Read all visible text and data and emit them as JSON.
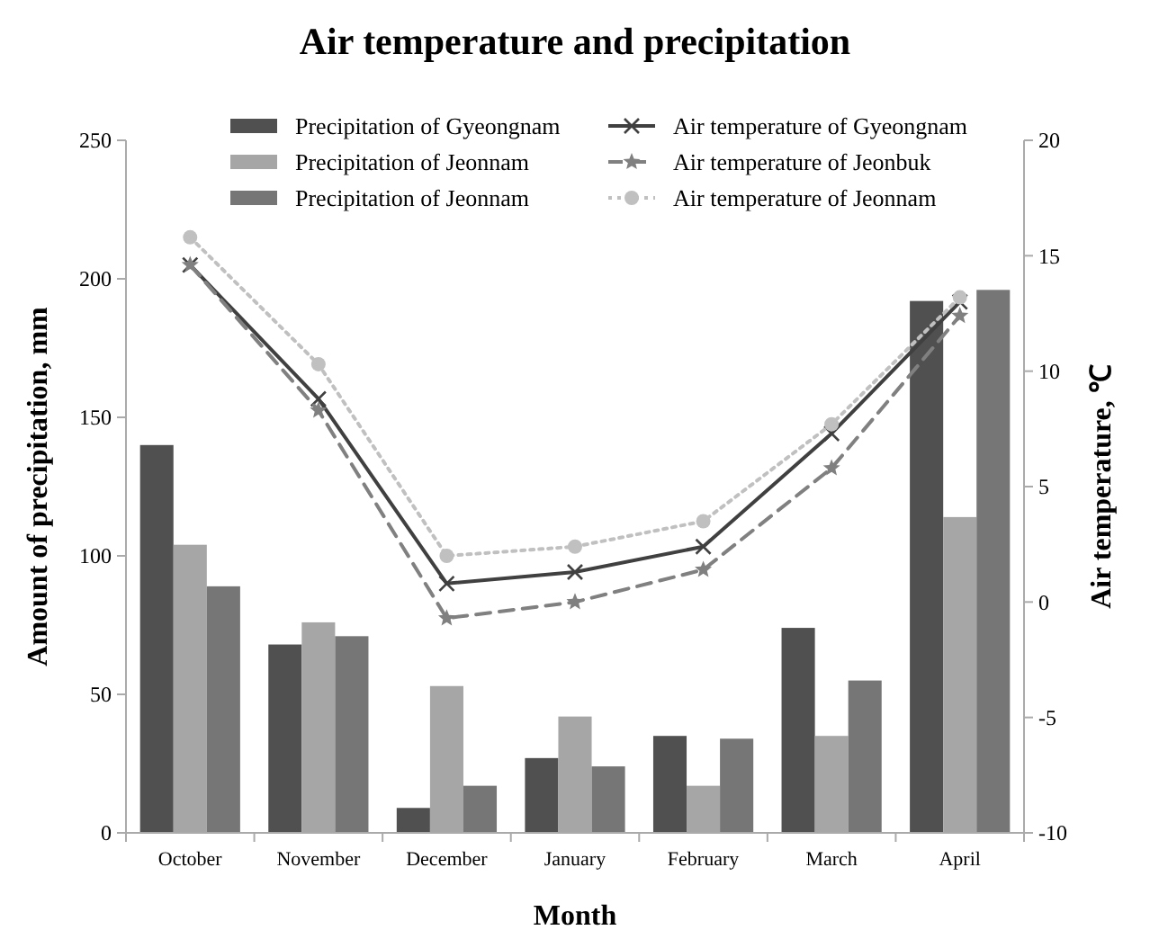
{
  "chart_data": {
    "type": "bar",
    "title": "Air temperature and precipitation",
    "xlabel": "Month",
    "ylabel": "Amount of precipitation, mm",
    "y2label": "Air temperature, ℃",
    "categories": [
      "October",
      "November",
      "December",
      "January",
      "February",
      "March",
      "April"
    ],
    "ylim": [
      0,
      250
    ],
    "yticks": [
      0,
      50,
      100,
      150,
      200,
      250
    ],
    "y2lim": [
      -10,
      20
    ],
    "y2ticks": [
      -10,
      -5,
      0,
      5,
      10,
      15,
      20
    ],
    "legend": "top",
    "grid": false,
    "series": [
      {
        "name": "Precipitation of Gyeongnam",
        "color": "#505050",
        "values": [
          140,
          68,
          9,
          27,
          35,
          74,
          192
        ]
      },
      {
        "name": "Precipitation of Jeonnam",
        "color": "#a6a6a6",
        "values": [
          104,
          76,
          53,
          42,
          17,
          35,
          114
        ]
      },
      {
        "name": "Precipitation of Jeonnam",
        "color": "#767676",
        "values": [
          89,
          71,
          17,
          24,
          34,
          55,
          196
        ]
      },
      {
        "name": "Air temperature of Gyeongnam",
        "type": "line",
        "axis": "y2",
        "color": "#404040",
        "marker": "cross",
        "line_style": "solid",
        "values": [
          14.6,
          8.8,
          0.8,
          1.3,
          2.4,
          7.3,
          13.0
        ]
      },
      {
        "name": "Air temperature of Jeonbuk",
        "type": "line",
        "axis": "y2",
        "color": "#808080",
        "marker": "star",
        "line_style": "dashed",
        "values": [
          14.6,
          8.3,
          -0.7,
          0.0,
          1.4,
          5.8,
          12.4
        ]
      },
      {
        "name": "Air temperature of Jeonnam",
        "type": "line",
        "axis": "y2",
        "color": "#c0c0c0",
        "marker": "circle",
        "line_style": "dotted",
        "values": [
          15.8,
          10.3,
          2.0,
          2.4,
          3.5,
          7.7,
          13.2
        ]
      }
    ]
  }
}
